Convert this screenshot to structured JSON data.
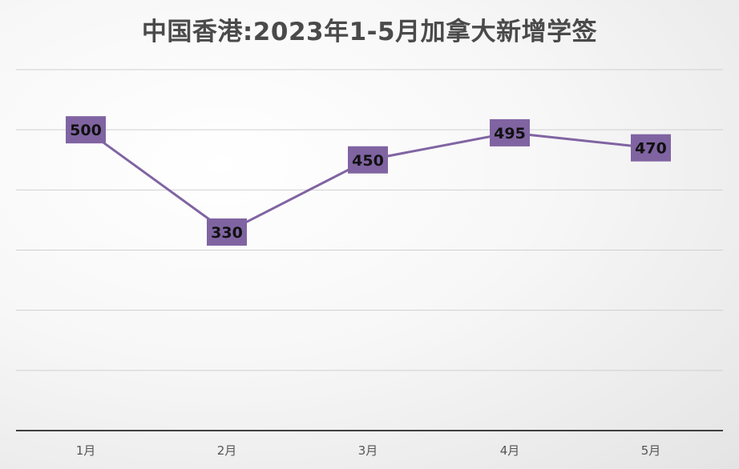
{
  "chart_data": {
    "type": "line",
    "title": "中国香港:2023年1-5月加拿大新增学签",
    "categories": [
      "1月",
      "2月",
      "3月",
      "4月",
      "5月"
    ],
    "series": [
      {
        "values": [
          500,
          330,
          450,
          495,
          470
        ]
      }
    ],
    "ylim": [
      0,
      600
    ],
    "grid": true,
    "data_labels": true,
    "legend": "none",
    "colors": {
      "line": "#8064A2",
      "label_box": "#8064A2",
      "gridline": "#d0d0d0",
      "axis": "#404040"
    }
  }
}
